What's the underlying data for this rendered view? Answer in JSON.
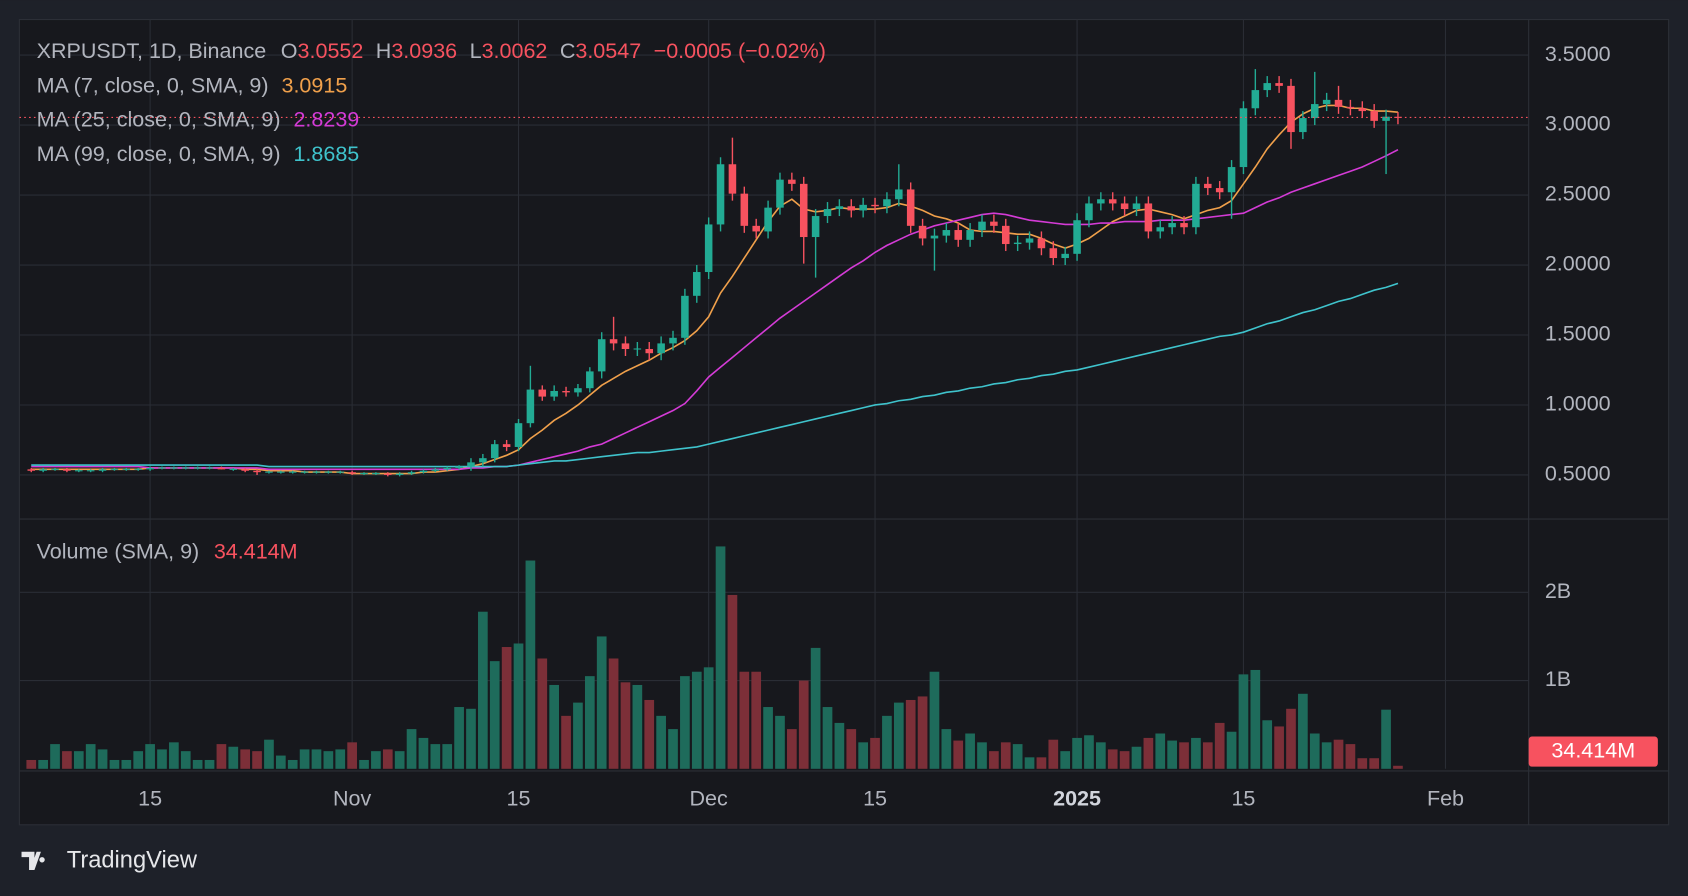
{
  "chart_data": {
    "type": "candlestick",
    "header": {
      "symbol": "XRPUSDT, 1D, Binance",
      "ohlc_letters": [
        "O",
        "H",
        "L",
        "C"
      ],
      "change": "−0.0005 (−0.02%)"
    },
    "volume_title": "Volume (SMA, 9)",
    "volume_last_label": "34.414M",
    "brand": "TradingView",
    "up_color": "#22ab94",
    "down_color": "#f7525f",
    "volume_up_color": "#1e6b5b",
    "volume_down_color": "#7c2f38",
    "grid": true,
    "x": [
      "2024-10-05",
      "2024-10-06",
      "2024-10-07",
      "2024-10-08",
      "2024-10-09",
      "2024-10-10",
      "2024-10-11",
      "2024-10-12",
      "2024-10-13",
      "2024-10-14",
      "2024-10-15",
      "2024-10-16",
      "2024-10-17",
      "2024-10-18",
      "2024-10-19",
      "2024-10-20",
      "2024-10-21",
      "2024-10-22",
      "2024-10-23",
      "2024-10-24",
      "2024-10-25",
      "2024-10-26",
      "2024-10-27",
      "2024-10-28",
      "2024-10-29",
      "2024-10-30",
      "2024-10-31",
      "2024-11-01",
      "2024-11-02",
      "2024-11-03",
      "2024-11-04",
      "2024-11-05",
      "2024-11-06",
      "2024-11-07",
      "2024-11-08",
      "2024-11-09",
      "2024-11-10",
      "2024-11-11",
      "2024-11-12",
      "2024-11-13",
      "2024-11-14",
      "2024-11-15",
      "2024-11-16",
      "2024-11-17",
      "2024-11-18",
      "2024-11-19",
      "2024-11-20",
      "2024-11-21",
      "2024-11-22",
      "2024-11-23",
      "2024-11-24",
      "2024-11-25",
      "2024-11-26",
      "2024-11-27",
      "2024-11-28",
      "2024-11-29",
      "2024-11-30",
      "2024-12-01",
      "2024-12-02",
      "2024-12-03",
      "2024-12-04",
      "2024-12-05",
      "2024-12-06",
      "2024-12-07",
      "2024-12-08",
      "2024-12-09",
      "2024-12-10",
      "2024-12-11",
      "2024-12-12",
      "2024-12-13",
      "2024-12-14",
      "2024-12-15",
      "2024-12-16",
      "2024-12-17",
      "2024-12-18",
      "2024-12-19",
      "2024-12-20",
      "2024-12-21",
      "2024-12-22",
      "2024-12-23",
      "2024-12-24",
      "2024-12-25",
      "2024-12-26",
      "2024-12-27",
      "2024-12-28",
      "2024-12-29",
      "2024-12-30",
      "2024-12-31",
      "2025-01-01",
      "2025-01-02",
      "2025-01-03",
      "2025-01-04",
      "2025-01-05",
      "2025-01-06",
      "2025-01-07",
      "2025-01-08",
      "2025-01-09",
      "2025-01-10",
      "2025-01-11",
      "2025-01-12",
      "2025-01-13",
      "2025-01-14",
      "2025-01-15",
      "2025-01-16",
      "2025-01-17",
      "2025-01-18",
      "2025-01-19",
      "2025-01-20",
      "2025-01-21",
      "2025-01-22",
      "2025-01-23",
      "2025-01-24",
      "2025-01-25",
      "2025-01-26",
      "2025-01-27",
      "2025-01-28"
    ],
    "open": [
      0.54,
      0.53,
      0.54,
      0.54,
      0.53,
      0.53,
      0.53,
      0.54,
      0.54,
      0.54,
      0.54,
      0.55,
      0.55,
      0.55,
      0.55,
      0.55,
      0.55,
      0.54,
      0.54,
      0.53,
      0.52,
      0.52,
      0.52,
      0.52,
      0.52,
      0.52,
      0.52,
      0.52,
      0.51,
      0.51,
      0.51,
      0.5,
      0.51,
      0.52,
      0.53,
      0.54,
      0.55,
      0.56,
      0.59,
      0.62,
      0.72,
      0.7,
      0.87,
      1.11,
      1.06,
      1.1,
      1.09,
      1.12,
      1.24,
      1.47,
      1.44,
      1.4,
      1.4,
      1.37,
      1.44,
      1.48,
      1.78,
      1.95,
      2.29,
      2.72,
      2.51,
      2.28,
      2.24,
      2.41,
      2.61,
      2.58,
      2.2,
      2.35,
      2.4,
      2.42,
      2.39,
      2.43,
      2.42,
      2.47,
      2.54,
      2.28,
      2.19,
      2.21,
      2.25,
      2.18,
      2.25,
      2.31,
      2.28,
      2.15,
      2.16,
      2.19,
      2.12,
      2.05,
      2.08,
      2.32,
      2.44,
      2.47,
      2.44,
      2.4,
      2.44,
      2.24,
      2.27,
      2.3,
      2.27,
      2.58,
      2.55,
      2.52,
      2.7,
      3.12,
      3.25,
      3.3,
      3.28,
      2.95,
      3.05,
      3.15,
      3.18,
      3.13,
      3.12,
      3.1,
      3.03,
      3.0552
    ],
    "high": [
      0.55,
      0.55,
      0.55,
      0.55,
      0.54,
      0.54,
      0.55,
      0.55,
      0.55,
      0.55,
      0.56,
      0.56,
      0.56,
      0.56,
      0.56,
      0.56,
      0.56,
      0.55,
      0.55,
      0.54,
      0.53,
      0.53,
      0.53,
      0.53,
      0.53,
      0.53,
      0.53,
      0.53,
      0.52,
      0.52,
      0.52,
      0.52,
      0.53,
      0.54,
      0.55,
      0.56,
      0.57,
      0.62,
      0.65,
      0.75,
      0.75,
      0.9,
      1.28,
      1.14,
      1.14,
      1.13,
      1.15,
      1.27,
      1.52,
      1.63,
      1.49,
      1.45,
      1.45,
      1.49,
      1.53,
      1.83,
      2.0,
      2.34,
      2.77,
      2.91,
      2.56,
      2.33,
      2.46,
      2.66,
      2.66,
      2.63,
      2.4,
      2.45,
      2.47,
      2.47,
      2.48,
      2.48,
      2.52,
      2.72,
      2.59,
      2.33,
      2.26,
      2.3,
      2.3,
      2.3,
      2.36,
      2.36,
      2.33,
      2.21,
      2.24,
      2.24,
      2.17,
      2.13,
      2.37,
      2.49,
      2.52,
      2.52,
      2.49,
      2.49,
      2.49,
      2.32,
      2.35,
      2.35,
      2.63,
      2.63,
      2.6,
      2.75,
      3.17,
      3.4,
      3.35,
      3.35,
      3.33,
      3.1,
      3.38,
      3.23,
      3.28,
      3.18,
      3.17,
      3.15,
      3.11,
      3.0936
    ],
    "low": [
      0.52,
      0.52,
      0.53,
      0.52,
      0.52,
      0.52,
      0.52,
      0.53,
      0.53,
      0.53,
      0.53,
      0.54,
      0.54,
      0.54,
      0.54,
      0.54,
      0.54,
      0.53,
      0.52,
      0.5,
      0.51,
      0.51,
      0.51,
      0.51,
      0.51,
      0.51,
      0.51,
      0.5,
      0.5,
      0.5,
      0.49,
      0.49,
      0.5,
      0.51,
      0.52,
      0.53,
      0.54,
      0.53,
      0.56,
      0.59,
      0.67,
      0.67,
      0.84,
      1.03,
      1.03,
      1.06,
      1.06,
      1.09,
      1.19,
      1.39,
      1.35,
      1.35,
      1.32,
      1.32,
      1.39,
      1.43,
      1.73,
      1.9,
      2.24,
      2.46,
      2.23,
      2.19,
      2.19,
      2.36,
      2.53,
      2.01,
      1.91,
      2.3,
      2.35,
      2.34,
      2.34,
      2.37,
      2.37,
      2.42,
      2.23,
      2.14,
      1.96,
      2.16,
      2.13,
      2.13,
      2.2,
      2.23,
      2.1,
      2.1,
      2.11,
      2.07,
      2.0,
      2.0,
      2.03,
      2.27,
      2.39,
      2.39,
      2.35,
      2.35,
      2.19,
      2.19,
      2.22,
      2.22,
      2.22,
      2.5,
      2.47,
      2.33,
      2.65,
      3.07,
      3.2,
      3.23,
      2.83,
      2.9,
      3.0,
      3.1,
      3.08,
      3.07,
      3.05,
      2.98,
      2.65,
      3.0062
    ],
    "close": [
      0.53,
      0.54,
      0.54,
      0.53,
      0.53,
      0.53,
      0.54,
      0.54,
      0.54,
      0.54,
      0.55,
      0.55,
      0.55,
      0.55,
      0.55,
      0.55,
      0.54,
      0.54,
      0.53,
      0.52,
      0.52,
      0.52,
      0.52,
      0.52,
      0.52,
      0.52,
      0.52,
      0.51,
      0.51,
      0.51,
      0.5,
      0.51,
      0.52,
      0.53,
      0.54,
      0.55,
      0.56,
      0.59,
      0.62,
      0.72,
      0.7,
      0.87,
      1.11,
      1.06,
      1.1,
      1.09,
      1.12,
      1.24,
      1.47,
      1.44,
      1.4,
      1.4,
      1.37,
      1.44,
      1.48,
      1.78,
      1.95,
      2.29,
      2.72,
      2.51,
      2.28,
      2.24,
      2.41,
      2.61,
      2.58,
      2.2,
      2.35,
      2.4,
      2.42,
      2.39,
      2.43,
      2.42,
      2.47,
      2.54,
      2.28,
      2.19,
      2.21,
      2.25,
      2.18,
      2.25,
      2.31,
      2.28,
      2.15,
      2.16,
      2.19,
      2.12,
      2.05,
      2.08,
      2.32,
      2.44,
      2.47,
      2.44,
      2.4,
      2.44,
      2.24,
      2.27,
      2.3,
      2.27,
      2.58,
      2.55,
      2.52,
      2.7,
      3.12,
      3.25,
      3.3,
      3.28,
      2.95,
      3.05,
      3.15,
      3.18,
      3.13,
      3.12,
      3.1,
      3.03,
      3.06,
      3.0547
    ],
    "volume": [
      100000000.0,
      100000000.0,
      280000000.0,
      200000000.0,
      200000000.0,
      280000000.0,
      220000000.0,
      100000000.0,
      100000000.0,
      200000000.0,
      280000000.0,
      220000000.0,
      300000000.0,
      200000000.0,
      100000000.0,
      100000000.0,
      280000000.0,
      250000000.0,
      220000000.0,
      200000000.0,
      330000000.0,
      150000000.0,
      100000000.0,
      220000000.0,
      220000000.0,
      200000000.0,
      220000000.0,
      300000000.0,
      100000000.0,
      200000000.0,
      220000000.0,
      200000000.0,
      450000000.0,
      350000000.0,
      280000000.0,
      280000000.0,
      700000000.0,
      680000000.0,
      1780000000.0,
      1220000000.0,
      1380000000.0,
      1420000000.0,
      2360000000.0,
      1250000000.0,
      950000000.0,
      600000000.0,
      750000000.0,
      1050000000.0,
      1500000000.0,
      1250000000.0,
      980000000.0,
      950000000.0,
      780000000.0,
      600000000.0,
      450000000.0,
      1050000000.0,
      1100000000.0,
      1150000000.0,
      2520000000.0,
      1970000000.0,
      1100000000.0,
      1100000000.0,
      700000000.0,
      600000000.0,
      450000000.0,
      1000000000.0,
      1370000000.0,
      700000000.0,
      520000000.0,
      450000000.0,
      300000000.0,
      350000000.0,
      600000000.0,
      750000000.0,
      780000000.0,
      820000000.0,
      1100000000.0,
      450000000.0,
      320000000.0,
      400000000.0,
      300000000.0,
      200000000.0,
      300000000.0,
      280000000.0,
      130000000.0,
      130000000.0,
      330000000.0,
      200000000.0,
      350000000.0,
      380000000.0,
      300000000.0,
      220000000.0,
      200000000.0,
      250000000.0,
      350000000.0,
      400000000.0,
      320000000.0,
      300000000.0,
      350000000.0,
      300000000.0,
      520000000.0,
      420000000.0,
      1070000000.0,
      1120000000.0,
      550000000.0,
      480000000.0,
      680000000.0,
      850000000.0,
      400000000.0,
      300000000.0,
      330000000.0,
      280000000.0,
      120000000.0,
      120000000.0,
      670000000.0,
      34414000
    ],
    "series": [
      {
        "name": "MA (7, close, 0, SMA, 9)",
        "color": "#f0a04b",
        "values": [
          0.54,
          0.54,
          0.54,
          0.54,
          0.54,
          0.54,
          0.54,
          0.54,
          0.54,
          0.54,
          0.55,
          0.55,
          0.55,
          0.55,
          0.55,
          0.55,
          0.55,
          0.55,
          0.54,
          0.54,
          0.53,
          0.53,
          0.53,
          0.52,
          0.52,
          0.52,
          0.52,
          0.51,
          0.51,
          0.51,
          0.51,
          0.51,
          0.51,
          0.52,
          0.52,
          0.53,
          0.54,
          0.56,
          0.58,
          0.61,
          0.64,
          0.68,
          0.76,
          0.82,
          0.89,
          0.94,
          1.0,
          1.07,
          1.14,
          1.19,
          1.24,
          1.28,
          1.32,
          1.37,
          1.41,
          1.46,
          1.53,
          1.63,
          1.8,
          1.92,
          2.05,
          2.18,
          2.31,
          2.42,
          2.47,
          2.4,
          2.38,
          2.39,
          2.41,
          2.4,
          2.4,
          2.4,
          2.41,
          2.44,
          2.42,
          2.39,
          2.35,
          2.33,
          2.3,
          2.25,
          2.24,
          2.24,
          2.23,
          2.22,
          2.22,
          2.19,
          2.15,
          2.12,
          2.15,
          2.19,
          2.25,
          2.31,
          2.35,
          2.39,
          2.4,
          2.38,
          2.36,
          2.33,
          2.36,
          2.39,
          2.41,
          2.46,
          2.58,
          2.7,
          2.83,
          2.93,
          3.02,
          3.08,
          3.12,
          3.14,
          3.14,
          3.12,
          3.12,
          3.1,
          3.1,
          3.0915
        ]
      },
      {
        "name": "MA (25, close, 0, SMA, 9)",
        "color": "#d43bd6",
        "values": [
          0.56,
          0.56,
          0.56,
          0.56,
          0.56,
          0.56,
          0.56,
          0.56,
          0.56,
          0.56,
          0.55,
          0.55,
          0.55,
          0.55,
          0.55,
          0.55,
          0.55,
          0.55,
          0.55,
          0.55,
          0.54,
          0.54,
          0.54,
          0.54,
          0.54,
          0.54,
          0.54,
          0.54,
          0.54,
          0.54,
          0.54,
          0.54,
          0.54,
          0.54,
          0.54,
          0.54,
          0.54,
          0.55,
          0.55,
          0.56,
          0.56,
          0.57,
          0.59,
          0.61,
          0.63,
          0.65,
          0.67,
          0.7,
          0.72,
          0.76,
          0.8,
          0.84,
          0.88,
          0.92,
          0.96,
          1.01,
          1.1,
          1.2,
          1.27,
          1.34,
          1.41,
          1.48,
          1.55,
          1.62,
          1.68,
          1.74,
          1.8,
          1.86,
          1.92,
          1.98,
          2.03,
          2.09,
          2.14,
          2.18,
          2.22,
          2.25,
          2.28,
          2.3,
          2.32,
          2.34,
          2.36,
          2.37,
          2.36,
          2.34,
          2.32,
          2.31,
          2.3,
          2.29,
          2.29,
          2.29,
          2.3,
          2.3,
          2.31,
          2.31,
          2.31,
          2.32,
          2.32,
          2.32,
          2.33,
          2.34,
          2.35,
          2.36,
          2.37,
          2.41,
          2.45,
          2.48,
          2.52,
          2.55,
          2.58,
          2.61,
          2.64,
          2.67,
          2.7,
          2.74,
          2.78,
          2.8239
        ]
      },
      {
        "name": "MA (99, close, 0, SMA, 9)",
        "color": "#3fc3cc",
        "values": [
          0.57,
          0.57,
          0.57,
          0.57,
          0.57,
          0.57,
          0.57,
          0.57,
          0.57,
          0.57,
          0.57,
          0.57,
          0.57,
          0.57,
          0.57,
          0.57,
          0.57,
          0.57,
          0.57,
          0.57,
          0.56,
          0.56,
          0.56,
          0.56,
          0.56,
          0.56,
          0.56,
          0.56,
          0.56,
          0.56,
          0.56,
          0.56,
          0.56,
          0.56,
          0.56,
          0.56,
          0.56,
          0.56,
          0.56,
          0.56,
          0.56,
          0.57,
          0.58,
          0.59,
          0.6,
          0.6,
          0.61,
          0.62,
          0.63,
          0.64,
          0.65,
          0.66,
          0.66,
          0.67,
          0.68,
          0.69,
          0.7,
          0.72,
          0.74,
          0.76,
          0.78,
          0.8,
          0.82,
          0.84,
          0.86,
          0.88,
          0.9,
          0.92,
          0.94,
          0.96,
          0.98,
          1.0,
          1.01,
          1.03,
          1.04,
          1.06,
          1.07,
          1.09,
          1.1,
          1.12,
          1.13,
          1.15,
          1.16,
          1.18,
          1.19,
          1.21,
          1.22,
          1.24,
          1.25,
          1.27,
          1.29,
          1.31,
          1.33,
          1.35,
          1.37,
          1.39,
          1.41,
          1.43,
          1.45,
          1.47,
          1.49,
          1.5,
          1.52,
          1.55,
          1.58,
          1.6,
          1.63,
          1.66,
          1.68,
          1.71,
          1.74,
          1.76,
          1.79,
          1.82,
          1.84,
          1.8685
        ]
      }
    ],
    "xlim": [
      "2024-10-04",
      "2025-02-08"
    ],
    "xticks": [
      {
        "value": "2024-10-15",
        "label": "15"
      },
      {
        "value": "2024-11-01",
        "label": "Nov"
      },
      {
        "value": "2024-11-15",
        "label": "15"
      },
      {
        "value": "2024-12-01",
        "label": "Dec"
      },
      {
        "value": "2024-12-15",
        "label": "15"
      },
      {
        "value": "2025-01-01",
        "label": "2025"
      },
      {
        "value": "2025-01-15",
        "label": "15"
      },
      {
        "value": "2025-02-01",
        "label": "Feb"
      }
    ],
    "ylim": [
      0.185,
      3.754
    ],
    "yticks": [
      {
        "value": 0.5,
        "label": "0.5000"
      },
      {
        "value": 1,
        "label": "1.0000"
      },
      {
        "value": 1.5,
        "label": "1.5000"
      },
      {
        "value": 2,
        "label": "2.0000"
      },
      {
        "value": 2.5,
        "label": "2.5000"
      },
      {
        "value": 3,
        "label": "3.0000"
      },
      {
        "value": 3.5,
        "label": "3.5000"
      }
    ],
    "y2lim": [
      0,
      2830000000
    ],
    "y2ticks": [
      {
        "value": 1000000000,
        "label": "1B"
      },
      {
        "value": 2000000000,
        "label": "2B"
      }
    ]
  }
}
